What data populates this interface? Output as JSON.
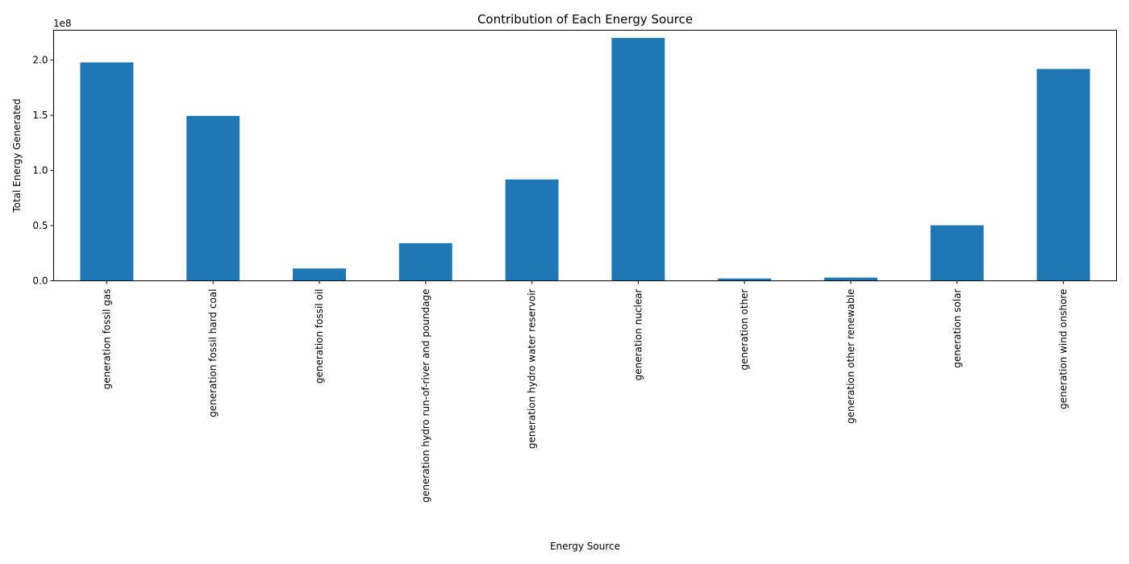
{
  "chart_data": {
    "type": "bar",
    "title": "Contribution of Each Energy Source",
    "xlabel": "Energy Source",
    "ylabel": "Total Energy Generated",
    "y_offset_label": "1e8",
    "y_scale": 100000000,
    "ylim": [
      0,
      227000000
    ],
    "yticks": [
      {
        "value": 0,
        "label": "0.0"
      },
      {
        "value": 50000000,
        "label": "0.5"
      },
      {
        "value": 100000000,
        "label": "1.0"
      },
      {
        "value": 150000000,
        "label": "1.5"
      },
      {
        "value": 200000000,
        "label": "2.0"
      }
    ],
    "categories": [
      "generation fossil gas",
      "generation fossil hard coal",
      "generation fossil oil",
      "generation hydro run-of-river and poundage",
      "generation hydro water reservoir",
      "generation nuclear",
      "generation other",
      "generation other renewable",
      "generation solar",
      "generation wind onshore"
    ],
    "values": [
      197800000,
      149400000,
      11200000,
      34100000,
      91800000,
      220000000,
      2100000,
      2900000,
      50300000,
      191900000
    ],
    "bar_color": "#1f77b4",
    "grid": false,
    "legend": "none"
  }
}
